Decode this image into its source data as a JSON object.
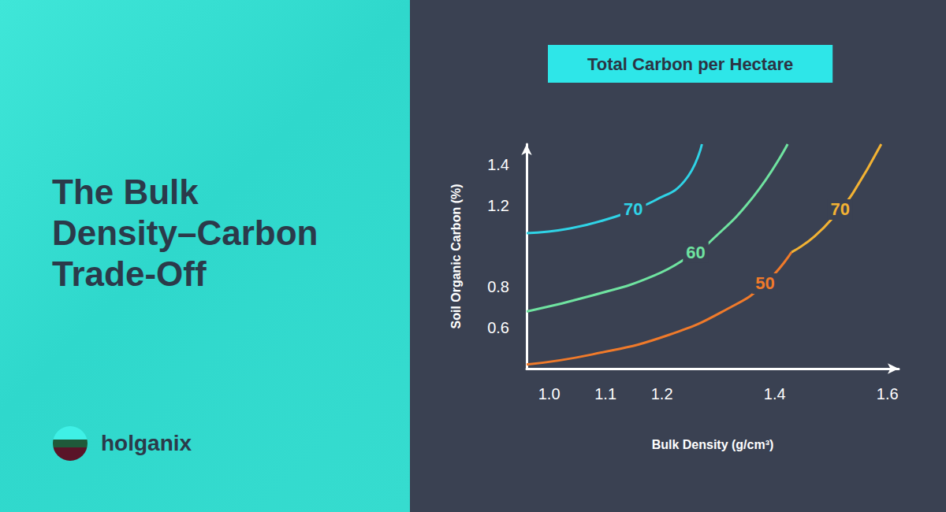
{
  "headline": "The Bulk Density–Carbon Trade-Off",
  "brand": "holganix",
  "chart_data": {
    "type": "line",
    "title": "Total Carbon per Hectare",
    "x_label": "Bulk Density (g/cm³)",
    "y_label": "Soil Organic Carbon (%)",
    "xlim": [
      0.96,
      1.62
    ],
    "xticks": [
      {
        "value": 1,
        "label": "1.0"
      },
      1.1,
      1.2,
      1.4,
      1.6
    ],
    "ylim": [
      0.4,
      1.5
    ],
    "yticks": [
      0.6,
      0.8,
      1.2,
      1.4
    ],
    "grid": false,
    "series": [
      {
        "name": "70",
        "color": "#2fd3e6",
        "label_x": 1.149,
        "x": [
          0.96,
          1.037,
          1.118,
          1.149,
          1.186,
          1.24,
          1.271
        ],
        "values": [
          1.064,
          1.087,
          1.145,
          1.18,
          1.222,
          1.319,
          1.5
        ]
      },
      {
        "name": "60",
        "color": "#6fe3a0",
        "label_x": 1.26,
        "x": [
          0.96,
          1.077,
          1.186,
          1.26,
          1.281,
          1.362,
          1.423
        ],
        "values": [
          0.68,
          0.759,
          0.856,
          0.97,
          1.01,
          1.242,
          1.5
        ]
      },
      {
        "name": "50",
        "color": "#f07a2a",
        "label_x": 1.383,
        "x": [
          0.96,
          1.077,
          1.213,
          1.322,
          1.383,
          1.43
        ],
        "values": [
          0.42,
          0.47,
          0.566,
          0.701,
          0.817,
          0.971
        ]
      },
      {
        "name": "70",
        "color": "#f2b233",
        "label_x": 1.516,
        "x": [
          1.43,
          1.471,
          1.516,
          1.539,
          1.589
        ],
        "values": [
          0.971,
          1.049,
          1.18,
          1.261,
          1.5
        ]
      }
    ]
  }
}
